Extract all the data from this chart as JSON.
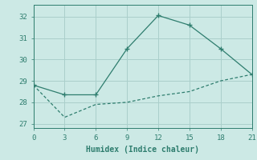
{
  "xlabel": "Humidex (Indice chaleur)",
  "line1_x": [
    0,
    3,
    6,
    9,
    12,
    15,
    18,
    21
  ],
  "line1_y": [
    28.8,
    28.35,
    28.35,
    30.5,
    32.05,
    31.6,
    30.5,
    29.3
  ],
  "line2_x": [
    0,
    3,
    6,
    9,
    12,
    15,
    18,
    21
  ],
  "line2_y": [
    28.8,
    27.3,
    27.9,
    28.0,
    28.3,
    28.5,
    29.0,
    29.3
  ],
  "line_color": "#2e7d6e",
  "bg_color": "#cce9e5",
  "grid_color": "#aacfcb",
  "ylim": [
    26.8,
    32.55
  ],
  "xlim": [
    0,
    21
  ],
  "xticks": [
    0,
    3,
    6,
    9,
    12,
    15,
    18,
    21
  ],
  "yticks": [
    27,
    28,
    29,
    30,
    31,
    32
  ]
}
